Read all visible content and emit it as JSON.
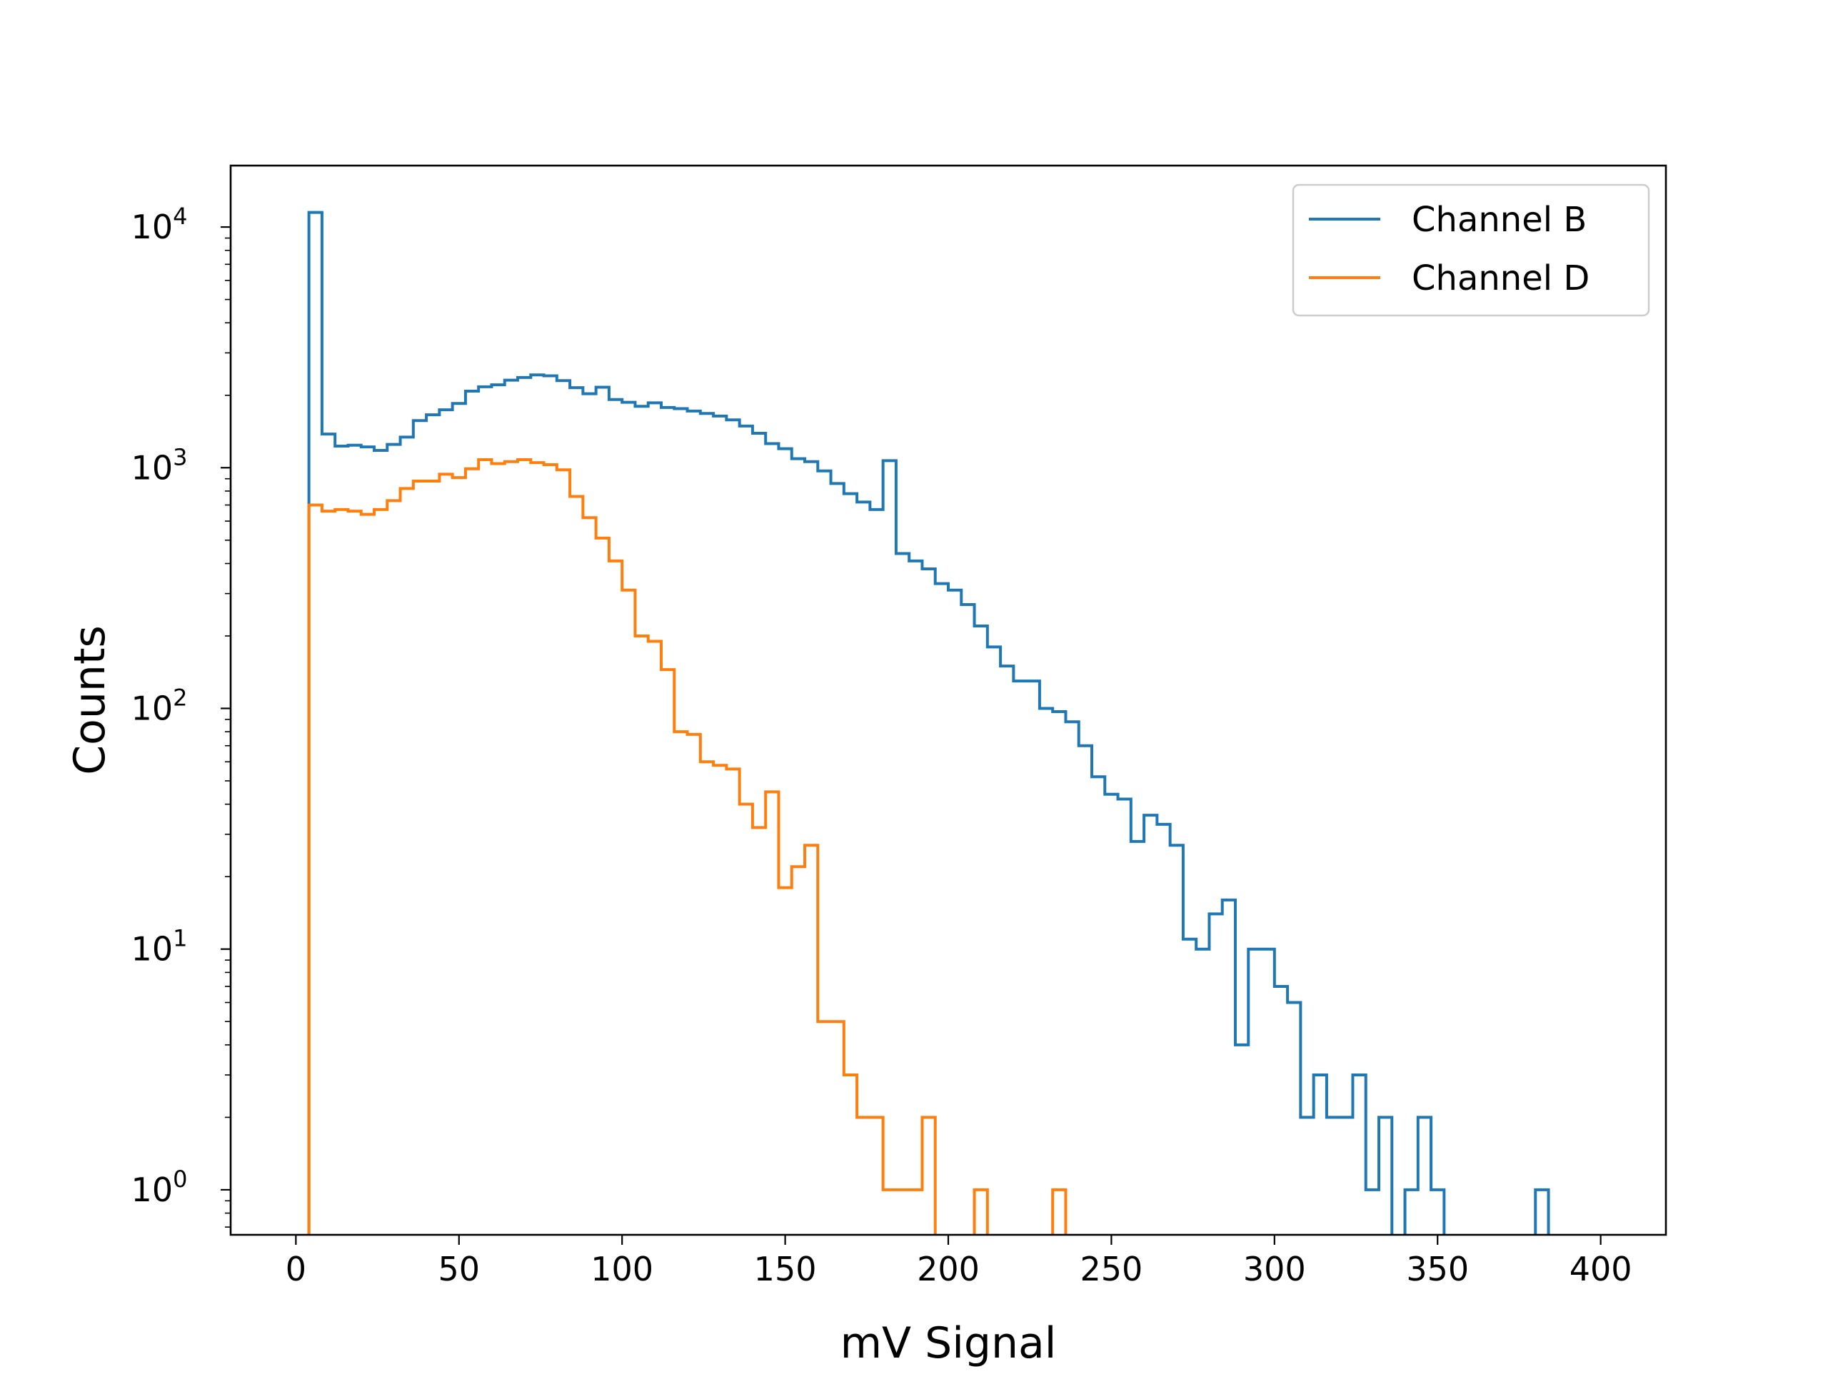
{
  "chart_data": {
    "type": "histogram",
    "title": "",
    "xlabel": "mV Signal",
    "ylabel": "Counts",
    "xlim": [
      -20,
      420
    ],
    "ylim": [
      0.65,
      18000
    ],
    "yscale": "log",
    "xticks": [
      0,
      50,
      100,
      150,
      200,
      250,
      300,
      350,
      400
    ],
    "xtick_labels": [
      "0",
      "50",
      "100",
      "150",
      "200",
      "250",
      "300",
      "350",
      "400"
    ],
    "yticks": [
      1,
      10,
      100,
      1000,
      10000
    ],
    "ytick_labels": [
      {
        "base": "10",
        "exp": "0"
      },
      {
        "base": "10",
        "exp": "1"
      },
      {
        "base": "10",
        "exp": "2"
      },
      {
        "base": "10",
        "exp": "3"
      },
      {
        "base": "10",
        "exp": "4"
      }
    ],
    "grid": false,
    "legend_position": "top-right",
    "bin_width": 4,
    "series": [
      {
        "name": "Channel B",
        "color": "#1f77b4",
        "bins_start": 4,
        "counts": [
          11500,
          1380,
          1230,
          1240,
          1220,
          1180,
          1250,
          1340,
          1570,
          1660,
          1740,
          1850,
          2080,
          2170,
          2210,
          2310,
          2370,
          2430,
          2410,
          2300,
          2150,
          2030,
          2160,
          1920,
          1870,
          1800,
          1860,
          1780,
          1760,
          1720,
          1680,
          1640,
          1580,
          1490,
          1390,
          1260,
          1200,
          1090,
          1060,
          970,
          860,
          780,
          720,
          670,
          1070,
          440,
          410,
          380,
          330,
          310,
          270,
          220,
          180,
          150,
          130,
          130,
          100,
          97,
          88,
          70,
          52,
          44,
          42,
          28,
          36,
          33,
          27,
          11,
          10,
          14,
          16,
          4,
          10,
          10,
          7,
          6,
          2,
          3,
          2,
          2,
          3,
          1,
          2,
          0,
          1,
          2,
          1,
          0,
          0,
          0,
          0,
          0,
          0,
          0,
          1
        ]
      },
      {
        "name": "Channel D",
        "color": "#ff7f0e",
        "bins_start": 4,
        "counts": [
          700,
          660,
          670,
          660,
          640,
          670,
          730,
          820,
          880,
          880,
          940,
          910,
          990,
          1080,
          1040,
          1060,
          1080,
          1050,
          1030,
          980,
          760,
          620,
          510,
          410,
          310,
          200,
          190,
          145,
          80,
          78,
          60,
          58,
          56,
          40,
          32,
          45,
          18,
          22,
          27,
          5,
          5,
          3,
          2,
          2,
          1,
          1,
          1,
          2,
          0,
          0,
          0,
          1,
          0,
          0,
          0,
          0,
          0,
          1
        ]
      }
    ]
  }
}
